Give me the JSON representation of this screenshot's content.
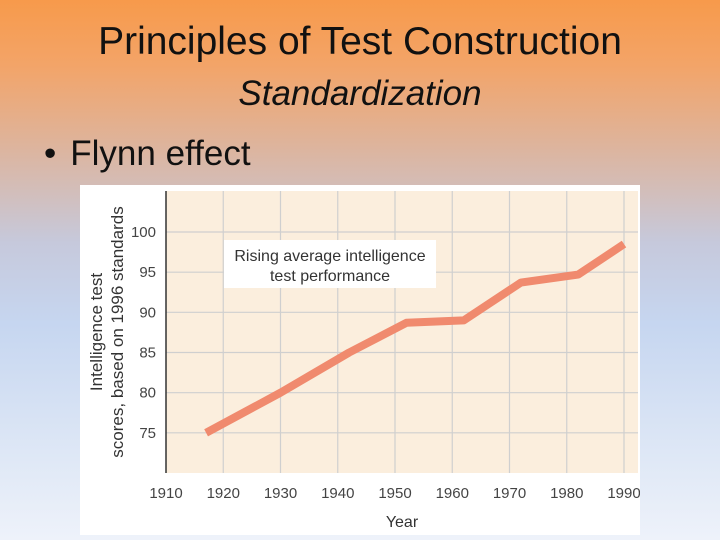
{
  "slide": {
    "title": "Principles of Test Construction",
    "subtitle": "Standardization",
    "bullet": "Flynn effect"
  },
  "chart_data": {
    "type": "line",
    "annotation": [
      "Rising average intelligence",
      "test performance"
    ],
    "xlabel": "Year",
    "ylabel": [
      "Intelligence test",
      "scores, based on 1996 standards"
    ],
    "x_ticks": [
      1910,
      1920,
      1930,
      1940,
      1950,
      1960,
      1970,
      1980,
      1990
    ],
    "y_ticks": [
      75,
      80,
      85,
      90,
      95,
      100
    ],
    "xlim": [
      1910,
      1993
    ],
    "ylim": [
      70,
      105
    ],
    "grid": true,
    "series": [
      {
        "x": [
          1917,
          1930,
          1942,
          1952,
          1962,
          1972,
          1982,
          1990
        ],
        "y": [
          75,
          80,
          85,
          88.7,
          89,
          93.7,
          94.7,
          98.5
        ],
        "color": "#f08a6e"
      }
    ]
  }
}
